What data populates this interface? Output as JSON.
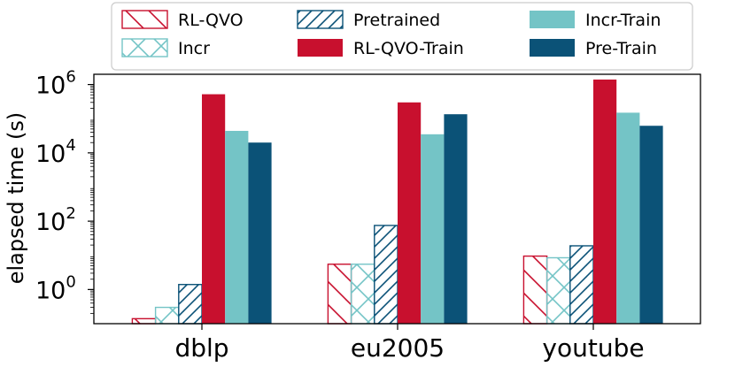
{
  "chart_data": {
    "type": "bar",
    "title": "",
    "xlabel": "",
    "ylabel": "elapsed time (s)",
    "yscale": "log",
    "ylim_log10": [
      -1,
      6.3
    ],
    "categories": [
      "dblp",
      "eu2005",
      "youtube"
    ],
    "yticks": [
      {
        "base": "10",
        "exp": "0",
        "log10": 0
      },
      {
        "base": "10",
        "exp": "2",
        "log10": 2
      },
      {
        "base": "10",
        "exp": "4",
        "log10": 4
      },
      {
        "base": "10",
        "exp": "6",
        "log10": 6
      }
    ],
    "series": [
      {
        "name": "RL-QVO",
        "values": [
          0.14,
          5.5,
          9.5
        ],
        "color": "#c8102e",
        "style": "hatch-back"
      },
      {
        "name": "Incr",
        "values": [
          0.3,
          5.5,
          8.5
        ],
        "color": "#74c4c6",
        "style": "hatch-x"
      },
      {
        "name": "Pretrained",
        "values": [
          1.4,
          75,
          19
        ],
        "color": "#0b5277",
        "style": "hatch-fwd"
      },
      {
        "name": "RL-QVO-Train",
        "values": [
          520000,
          300000,
          1400000
        ],
        "color": "#c8102e",
        "style": "solid"
      },
      {
        "name": "Incr-Train",
        "values": [
          44000,
          35000,
          150000
        ],
        "color": "#74c4c6",
        "style": "solid"
      },
      {
        "name": "Pre-Train",
        "values": [
          20000,
          135000,
          62000
        ],
        "color": "#0b5277",
        "style": "solid"
      }
    ]
  }
}
